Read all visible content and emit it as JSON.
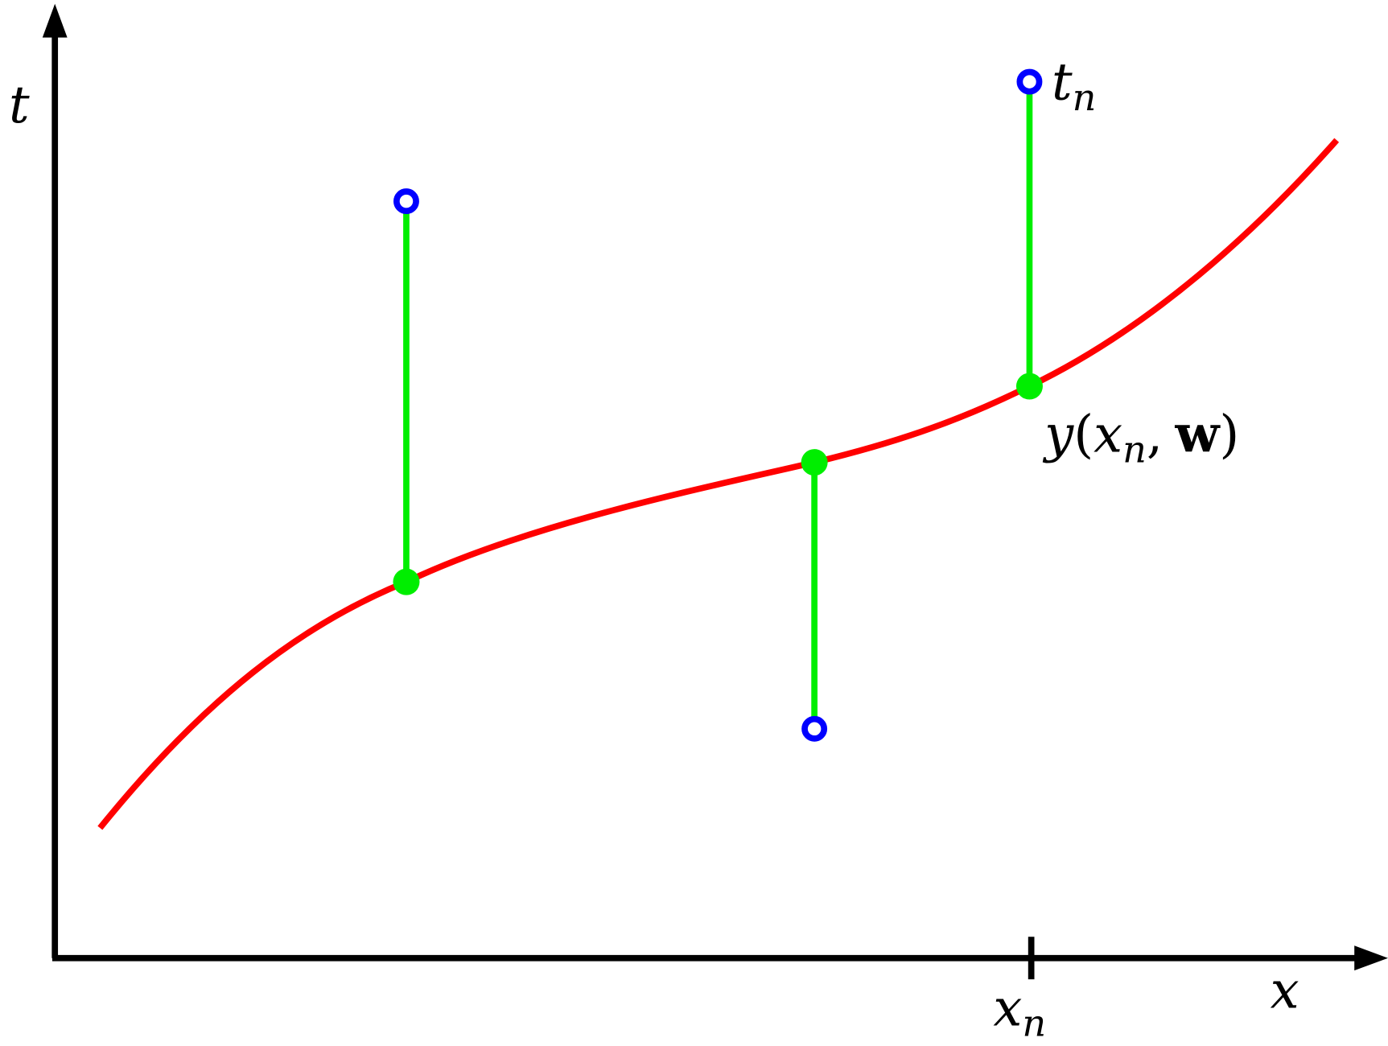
{
  "axes": {
    "y_label": "t",
    "x_label": "x",
    "tick_label": {
      "base": "x",
      "sub": "n"
    }
  },
  "annotations": {
    "target": {
      "base": "t",
      "sub": "n"
    },
    "prediction": {
      "func": "y",
      "open": "(",
      "arg": "x",
      "sub": "n",
      "sep": ",",
      "param": "w",
      "close": ")"
    }
  }
}
